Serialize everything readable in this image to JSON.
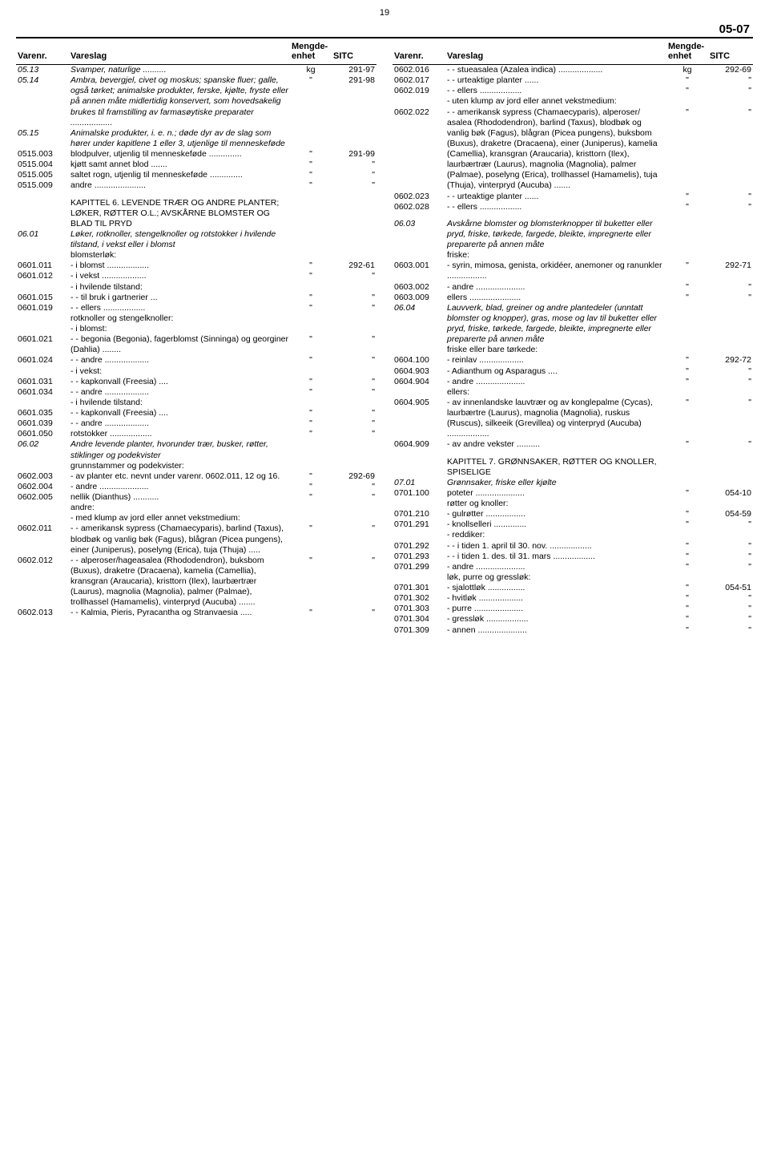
{
  "page_number": "19",
  "section_code": "05-07",
  "headers": {
    "varenr": "Varenr.",
    "vareslag": "Vareslag",
    "mengde": "Mengde-\nenhet",
    "sitc": "SITC"
  },
  "left": [
    {
      "v": "05.13",
      "d": "Svamper, naturlige ..........",
      "it": true,
      "u": "kg",
      "s": "291-97"
    },
    {
      "v": "05.14",
      "d": "Ambra, bevergjel, civet og moskus; spanske fluer; galle, også tørket; animalske produkter, ferske, kjølte, fryste eller på annen måte midlertidig konservert, som hovedsakelig brukes til framstilling av farmasøytiske preparater ..................",
      "it": true,
      "u": "\"",
      "s": "291-98"
    },
    {
      "v": "05.15",
      "d": "Animalske produkter, i. e. n.; døde dyr av de slag som hører under kapitlene 1 eller 3, utjenlige til menneskeføde",
      "it": true,
      "u": "",
      "s": ""
    },
    {
      "v": "0515.003",
      "d": "blodpulver, utjenlig til menneskeføde ..............",
      "u": "\"",
      "s": "291-99"
    },
    {
      "v": "0515.004",
      "d": "kjøtt samt annet blod .......",
      "u": "\"",
      "s": "\""
    },
    {
      "v": "0515.005",
      "d": "saltet rogn, utjenlig til menneskeføde ..............",
      "u": "\"",
      "s": "\""
    },
    {
      "v": "0515.009",
      "d": "andre ......................",
      "u": "\"",
      "s": "\""
    },
    {
      "spacer": true
    },
    {
      "v": "",
      "d": "KAPITTEL 6. LEVENDE TRÆR OG ANDRE PLANTER; LØKER, RØTTER O.L.; AVSKÅRNE BLOMSTER OG BLAD TIL PRYD",
      "chap": true
    },
    {
      "v": "06.01",
      "d": "Løker, rotknoller, stengelknoller og rotstokker i hvilende tilstand, i vekst eller i blomst",
      "it": true
    },
    {
      "v": "",
      "d": "blomsterløk:"
    },
    {
      "v": "0601.011",
      "d": "- i blomst ..................",
      "u": "\"",
      "s": "292-61"
    },
    {
      "v": "0601.012",
      "d": "- i vekst ...................",
      "u": "\"",
      "s": "\""
    },
    {
      "v": "",
      "d": "- i hvilende tilstand:"
    },
    {
      "v": "0601.015",
      "d": "- - til bruk i gartnerier ...",
      "u": "\"",
      "s": "\""
    },
    {
      "v": "0601.019",
      "d": "- - ellers ..................",
      "u": "\"",
      "s": "\""
    },
    {
      "v": "",
      "d": "rotknoller og stengelknoller:"
    },
    {
      "v": "",
      "d": "- i blomst:"
    },
    {
      "v": "0601.021",
      "d": "- - begonia (Begonia), fagerblomst (Sinninga) og georginer (Dahlia) ........",
      "u": "\"",
      "s": "\""
    },
    {
      "v": "0601.024",
      "d": "- - andre ...................",
      "u": "\"",
      "s": "\""
    },
    {
      "v": "",
      "d": "- i vekst:"
    },
    {
      "v": "0601.031",
      "d": "- - kapkonvall (Freesia) ....",
      "u": "\"",
      "s": "\""
    },
    {
      "v": "0601.034",
      "d": "- - andre ...................",
      "u": "\"",
      "s": "\""
    },
    {
      "v": "",
      "d": "- i hvilende tilstand:"
    },
    {
      "v": "0601.035",
      "d": "- - kapkonvall (Freesia) ....",
      "u": "\"",
      "s": "\""
    },
    {
      "v": "0601.039",
      "d": "- - andre ...................",
      "u": "\"",
      "s": "\""
    },
    {
      "v": "0601.050",
      "d": "rotstokker ..................",
      "u": "\"",
      "s": "\""
    },
    {
      "v": "06.02",
      "d": "Andre levende planter, hvorunder trær, busker, røtter, stiklinger og podekvister",
      "it": true
    },
    {
      "v": "",
      "d": "grunnstammer og podekvister:"
    },
    {
      "v": "0602.003",
      "d": "- av planter etc. nevnt under varenr. 0602.011, 12 og 16.",
      "u": "\"",
      "s": "292-69"
    },
    {
      "v": "0602.004",
      "d": "- andre .....................",
      "u": "\"",
      "s": "\""
    },
    {
      "v": "0602.005",
      "d": "nellik (Dianthus) ...........",
      "u": "\"",
      "s": "\""
    },
    {
      "v": "",
      "d": "andre:"
    },
    {
      "v": "",
      "d": "- med klump av jord eller annet vekstmedium:"
    },
    {
      "v": "0602.011",
      "d": "- - amerikansk sypress (Chamaecyparis), barlind (Taxus), blodbøk og vanlig bøk (Fagus), blågran (Picea pungens), einer (Juniperus), poselyng (Erica), tuja (Thuja) .....",
      "u": "\"",
      "s": "\""
    },
    {
      "v": "0602.012",
      "d": "- - alperoser/hageasalea (Rhododendron), buksbom (Buxus), draketre (Dracaena), kamelia (Camellia), kransgran (Araucaria), kristtorn (Ilex), laurbærtrær (Laurus), magnolia (Magnolia), palmer (Palmae), trollhassel (Hamamelis), vinterpryd (Aucuba) .......",
      "u": "\"",
      "s": "\""
    },
    {
      "v": "0602.013",
      "d": "- - Kalmia, Pieris, Pyracantha og Stranvaesia .....",
      "u": "\"",
      "s": "\""
    }
  ],
  "right": [
    {
      "v": "0602.016",
      "d": "- - stueasalea (Azalea indica) ...................",
      "u": "kg",
      "s": "292-69"
    },
    {
      "v": "0602.017",
      "d": "- - urteaktige planter ......",
      "u": "\"",
      "s": "\""
    },
    {
      "v": "0602.019",
      "d": "- - ellers ..................",
      "u": "\"",
      "s": "\""
    },
    {
      "v": "",
      "d": "- uten klump av jord eller annet vekstmedium:"
    },
    {
      "v": "0602.022",
      "d": "- - amerikansk sypress (Chamaecyparis), alperoser/ asalea (Rhododendron), barlind (Taxus), blodbøk og vanlig bøk (Fagus), blågran (Picea pungens), buksbom (Buxus), draketre (Dracaena), einer (Juniperus), kamelia (Camellia), kransgran (Araucaria), kristtorn (Ilex), laurbærtrær (Laurus), magnolia (Magnolia), palmer (Palmae), poselyng (Erica), trollhassel (Hamamelis), tuja (Thuja), vinterpryd (Aucuba) .......",
      "u": "\"",
      "s": "\""
    },
    {
      "v": "0602.023",
      "d": "- - urteaktige planter ......",
      "u": "\"",
      "s": "\""
    },
    {
      "v": "0602.028",
      "d": "- - ellers ..................",
      "u": "\"",
      "s": "\""
    },
    {
      "spacer": true
    },
    {
      "v": "06.03",
      "d": "Avskårne blomster og blomsterknopper til buketter eller pryd, friske, tørkede, fargede, bleikte, impregnerte eller preparerte på annen måte",
      "it": true
    },
    {
      "v": "",
      "d": "friske:"
    },
    {
      "v": "0603.001",
      "d": "- syrin, mimosa,  genista, orkidéer, anemoner og ranunkler .................",
      "u": "\"",
      "s": "292-71"
    },
    {
      "v": "0603.002",
      "d": "- andre .....................",
      "u": "\"",
      "s": "\""
    },
    {
      "v": "0603.009",
      "d": "ellers ......................",
      "u": "\"",
      "s": "\""
    },
    {
      "v": "06.04",
      "d": "Lauvverk, blad, greiner og andre plantedeler (unntatt blomster og knopper), gras, mose og lav til buketter eller pryd, friske, tørkede, fargede, bleikte, impregnerte eller preparerte på annen måte",
      "it": true
    },
    {
      "v": "",
      "d": "friske eller bare tørkede:"
    },
    {
      "v": "0604.100",
      "d": "- reinlav ...................",
      "u": "\"",
      "s": "292-72"
    },
    {
      "v": "0604.903",
      "d": "- Adianthum og Asparagus ....",
      "u": "\"",
      "s": "\""
    },
    {
      "v": "0604.904",
      "d": "- andre .....................",
      "u": "\"",
      "s": "\""
    },
    {
      "v": "",
      "d": "ellers:"
    },
    {
      "v": "0604.905",
      "d": "- av innenlandske lauvtrær og av konglepalme (Cycas), laurbærtre (Laurus), magnolia (Magnolia), ruskus (Ruscus), silkeeik (Grevillea) og vinterpryd (Aucuba) ..................",
      "u": "\"",
      "s": "\""
    },
    {
      "v": "0604.909",
      "d": "- av andre vekster ..........",
      "u": "\"",
      "s": "\""
    },
    {
      "spacer": true
    },
    {
      "v": "",
      "d": "KAPITTEL 7. GRØNNSAKER, RØTTER OG KNOLLER, SPISELIGE",
      "chap": true
    },
    {
      "v": "07.01",
      "d": "Grønnsaker, friske eller kjølte",
      "it": true
    },
    {
      "v": "0701.100",
      "d": "poteter .....................",
      "u": "\"",
      "s": "054-10"
    },
    {
      "v": "",
      "d": "røtter og knoller:"
    },
    {
      "v": "0701.210",
      "d": "- gulrøtter .................",
      "u": "\"",
      "s": "054-59"
    },
    {
      "v": "0701.291",
      "d": "- knollselleri ..............",
      "u": "\"",
      "s": "\""
    },
    {
      "v": "",
      "d": "- reddiker:"
    },
    {
      "v": "0701.292",
      "d": "- - i tiden 1. april til 30. nov. ..................",
      "u": "\"",
      "s": "\""
    },
    {
      "v": "0701.293",
      "d": "- - i tiden 1. des. til 31. mars ..................",
      "u": "\"",
      "s": "\""
    },
    {
      "v": "0701.299",
      "d": "- andre .....................",
      "u": "\"",
      "s": "\""
    },
    {
      "v": "",
      "d": "løk, purre og gressløk:"
    },
    {
      "v": "0701.301",
      "d": "- sjalottløk ................",
      "u": "\"",
      "s": "054-51"
    },
    {
      "v": "0701.302",
      "d": "- hvitløk ...................",
      "u": "\"",
      "s": "\""
    },
    {
      "v": "0701.303",
      "d": "- purre .....................",
      "u": "\"",
      "s": "\""
    },
    {
      "v": "0701.304",
      "d": "- gressløk ..................",
      "u": "\"",
      "s": "\""
    },
    {
      "v": "0701.309",
      "d": "- annen .....................",
      "u": "\"",
      "s": "\""
    }
  ]
}
